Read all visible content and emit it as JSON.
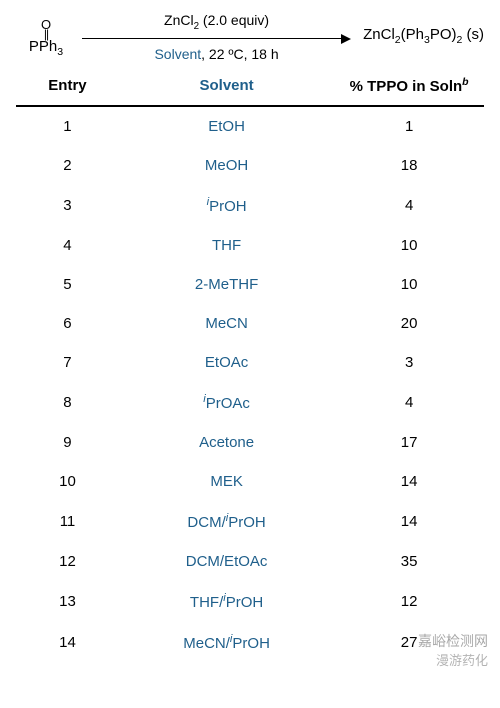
{
  "reaction": {
    "reactant_top": "O",
    "reactant_dbl": "||",
    "reactant_bottom_html": "PPh<sub>3</sub>",
    "above_arrow_html": "ZnCl<sub>2</sub> (2.0 equiv)",
    "below_arrow_html": "<span class='solvword'>Solvent</span>, 22 ºC, 18 h",
    "product_html": "ZnCl<sub>2</sub>(Ph<sub>3</sub>PO)<sub>2</sub> (s)"
  },
  "table": {
    "headers": {
      "entry": "Entry",
      "solvent": "Solvent",
      "pct_html": "% TPPO in Soln<sup><i>b</i></sup>"
    },
    "rows": [
      {
        "entry": "1",
        "solvent_html": "EtOH",
        "pct": "1"
      },
      {
        "entry": "2",
        "solvent_html": "MeOH",
        "pct": "18"
      },
      {
        "entry": "3",
        "solvent_html": "<span class='supi'>i</span>PrOH",
        "pct": "4"
      },
      {
        "entry": "4",
        "solvent_html": "THF",
        "pct": "10"
      },
      {
        "entry": "5",
        "solvent_html": "2-MeTHF",
        "pct": "10"
      },
      {
        "entry": "6",
        "solvent_html": "MeCN",
        "pct": "20"
      },
      {
        "entry": "7",
        "solvent_html": "EtOAc",
        "pct": "3"
      },
      {
        "entry": "8",
        "solvent_html": "<span class='supi'>i</span>PrOAc",
        "pct": "4"
      },
      {
        "entry": "9",
        "solvent_html": "Acetone",
        "pct": "17"
      },
      {
        "entry": "10",
        "solvent_html": "MEK",
        "pct": "14"
      },
      {
        "entry": "11",
        "solvent_html": "DCM/<span class='supi'>i</span>PrOH",
        "pct": "14"
      },
      {
        "entry": "12",
        "solvent_html": "DCM/EtOAc",
        "pct": "35"
      },
      {
        "entry": "13",
        "solvent_html": "THF/<span class='supi'>i</span>PrOH",
        "pct": "12"
      },
      {
        "entry": "14",
        "solvent_html": "MeCN/<span class='supi'>i</span>PrOH",
        "pct": "27"
      }
    ],
    "col_widths": [
      "22%",
      "46%",
      "32%"
    ]
  },
  "colors": {
    "accent": "#1f5f8b",
    "text": "#000000",
    "background": "#ffffff",
    "rule": "#000000"
  },
  "watermarks": {
    "w1": "嘉峪检测网",
    "w2": "漫游药化"
  }
}
